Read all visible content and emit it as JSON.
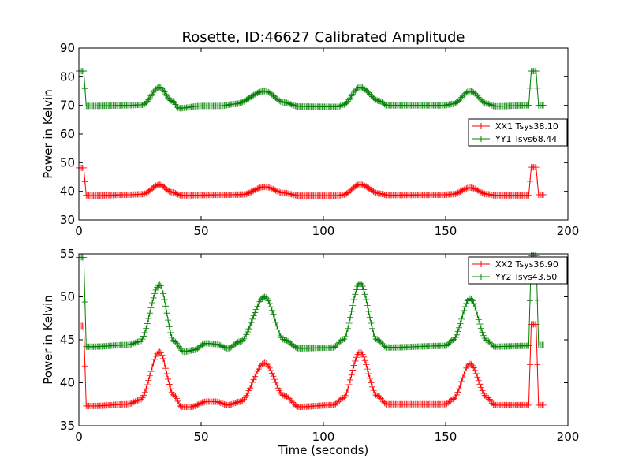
{
  "chart_data": [
    {
      "type": "line",
      "title": "Rosette, ID:46627 Calibrated Amplitude",
      "xlabel": "",
      "ylabel": "Power in Kelvin",
      "xlim": [
        0,
        200
      ],
      "ylim": [
        30,
        90
      ],
      "xticks": [
        0,
        50,
        100,
        150,
        200
      ],
      "yticks": [
        30,
        40,
        50,
        60,
        70,
        80,
        90
      ],
      "grid": false,
      "legend_position": "center-right",
      "marker": "+",
      "series": [
        {
          "name": "XX1 Tsys38.10",
          "color": "#ff0000",
          "base": 38.6,
          "points": [
            [
              0,
              48.2
            ],
            [
              2,
              48.2
            ],
            [
              3,
              38.6
            ],
            [
              5,
              38.5
            ],
            [
              20,
              38.8
            ],
            [
              26,
              39.0
            ],
            [
              33,
              42.3
            ],
            [
              38,
              39.7
            ],
            [
              42,
              38.6
            ],
            [
              60,
              38.8
            ],
            [
              67,
              38.9
            ],
            [
              76,
              41.6
            ],
            [
              84,
              39.4
            ],
            [
              90,
              38.5
            ],
            [
              106,
              38.5
            ],
            [
              108,
              38.8
            ],
            [
              115,
              42.4
            ],
            [
              123,
              39.2
            ],
            [
              126,
              38.7
            ],
            [
              149,
              38.8
            ],
            [
              153,
              39.0
            ],
            [
              160,
              41.3
            ],
            [
              167,
              39.0
            ],
            [
              170,
              38.6
            ],
            [
              184,
              38.6
            ],
            [
              185,
              48.4
            ],
            [
              187,
              48.4
            ],
            [
              188,
              38.8
            ],
            [
              190,
              38.8
            ]
          ]
        },
        {
          "name": "YY1 Tsys68.44",
          "color": "#008000",
          "base": 69.8,
          "points": [
            [
              0,
              82.0
            ],
            [
              2,
              82.0
            ],
            [
              3,
              69.8
            ],
            [
              5,
              69.8
            ],
            [
              20,
              70.0
            ],
            [
              26,
              70.2
            ],
            [
              33,
              76.4
            ],
            [
              38,
              71.6
            ],
            [
              41,
              69.0
            ],
            [
              50,
              69.8
            ],
            [
              58,
              69.8
            ],
            [
              64,
              70.5
            ],
            [
              76,
              75.0
            ],
            [
              84,
              71.0
            ],
            [
              90,
              69.6
            ],
            [
              106,
              69.5
            ],
            [
              108,
              70.2
            ],
            [
              115,
              76.4
            ],
            [
              123,
              71.5
            ],
            [
              126,
              70.0
            ],
            [
              149,
              70.0
            ],
            [
              153,
              70.5
            ],
            [
              160,
              75.0
            ],
            [
              167,
              70.6
            ],
            [
              170,
              69.7
            ],
            [
              184,
              70.0
            ],
            [
              185,
              82.0
            ],
            [
              187,
              82.0
            ],
            [
              188,
              70.0
            ],
            [
              190,
              70.0
            ]
          ]
        }
      ]
    },
    {
      "type": "line",
      "title": "",
      "xlabel": "Time (seconds)",
      "ylabel": "Power in Kelvin",
      "xlim": [
        0,
        200
      ],
      "ylim": [
        35,
        55
      ],
      "xticks": [
        0,
        50,
        100,
        150,
        200
      ],
      "yticks": [
        35,
        40,
        45,
        50,
        55
      ],
      "grid": false,
      "legend_position": "top-right",
      "marker": "+",
      "series": [
        {
          "name": "XX2 Tsys36.90",
          "color": "#ff0000",
          "points": [
            [
              0,
              46.6
            ],
            [
              2,
              46.6
            ],
            [
              3,
              37.3
            ],
            [
              6,
              37.3
            ],
            [
              20,
              37.5
            ],
            [
              25,
              38.0
            ],
            [
              33,
              43.6
            ],
            [
              39,
              38.5
            ],
            [
              42,
              37.2
            ],
            [
              46,
              37.2
            ],
            [
              52,
              37.8
            ],
            [
              56,
              37.8
            ],
            [
              61,
              37.4
            ],
            [
              66,
              37.8
            ],
            [
              76,
              42.3
            ],
            [
              84,
              38.5
            ],
            [
              90,
              37.2
            ],
            [
              104,
              37.4
            ],
            [
              108,
              38.2
            ],
            [
              115,
              43.6
            ],
            [
              122,
              38.5
            ],
            [
              126,
              37.5
            ],
            [
              150,
              37.5
            ],
            [
              153,
              38.1
            ],
            [
              160,
              42.2
            ],
            [
              167,
              38.3
            ],
            [
              170,
              37.4
            ],
            [
              184,
              37.4
            ],
            [
              185,
              46.8
            ],
            [
              187,
              46.8
            ],
            [
              188,
              37.4
            ],
            [
              190,
              37.4
            ]
          ]
        },
        {
          "name": "YY2 Tsys43.50",
          "color": "#008000",
          "points": [
            [
              0,
              54.6
            ],
            [
              2,
              54.6
            ],
            [
              3,
              44.2
            ],
            [
              6,
              44.2
            ],
            [
              20,
              44.4
            ],
            [
              25,
              44.8
            ],
            [
              33,
              51.4
            ],
            [
              39,
              44.8
            ],
            [
              43,
              43.6
            ],
            [
              47,
              43.8
            ],
            [
              52,
              44.6
            ],
            [
              56,
              44.5
            ],
            [
              61,
              44.0
            ],
            [
              66,
              44.8
            ],
            [
              76,
              50.0
            ],
            [
              84,
              45.0
            ],
            [
              90,
              44.0
            ],
            [
              104,
              44.1
            ],
            [
              108,
              45.0
            ],
            [
              115,
              51.6
            ],
            [
              122,
              45.0
            ],
            [
              126,
              44.1
            ],
            [
              150,
              44.3
            ],
            [
              153,
              45.0
            ],
            [
              160,
              49.8
            ],
            [
              167,
              44.9
            ],
            [
              170,
              44.2
            ],
            [
              184,
              44.3
            ],
            [
              185,
              54.8
            ],
            [
              187,
              54.8
            ],
            [
              188,
              44.4
            ],
            [
              190,
              44.4
            ]
          ]
        }
      ]
    }
  ]
}
